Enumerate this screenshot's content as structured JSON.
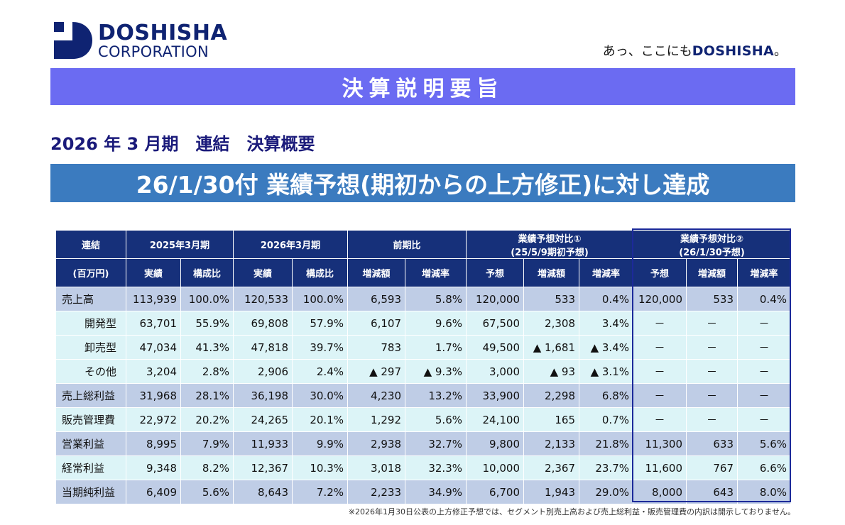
{
  "logo": {
    "line1": "DOSHISHA",
    "line2": "CORPORATION"
  },
  "slogan": {
    "prefix": "あっ、ここにも",
    "brand": "DOSHISHA",
    "suffix": "。"
  },
  "banner": "決算説明要旨",
  "subtitle": "2026 年 3 月期　連結　決算概要",
  "headline": "26/1/30付 業績予想(期初からの上方修正)に対し達成",
  "table": {
    "header1": [
      "連結",
      "2025年3月期",
      "2026年3月期",
      "前期比",
      "業績予想対比①\n(25/5/9期初予想)",
      "業績予想対比②\n(26/1/30予想)"
    ],
    "header1_lines": {
      "g4a": "業績予想対比①",
      "g4b": "(25/5/9期初予想)",
      "g5a": "業績予想対比②",
      "g5b": "(26/1/30予想)"
    },
    "header2": [
      "(百万円)",
      "実績",
      "構成比",
      "実績",
      "構成比",
      "増減額",
      "増減率",
      "予想",
      "増減額",
      "増減率",
      "予想",
      "増減額",
      "増減率"
    ],
    "rows": [
      {
        "label": "売上高",
        "values": [
          "113,939",
          "100.0%",
          "120,533",
          "100.0%",
          "6,593",
          "5.8%",
          "120,000",
          "533",
          "0.4%",
          "120,000",
          "533",
          "0.4%"
        ]
      },
      {
        "label": "開発型",
        "values": [
          "63,701",
          "55.9%",
          "69,808",
          "57.9%",
          "6,107",
          "9.6%",
          "67,500",
          "2,308",
          "3.4%",
          "－",
          "－",
          "－"
        ]
      },
      {
        "label": "卸売型",
        "values": [
          "47,034",
          "41.3%",
          "47,818",
          "39.7%",
          "783",
          "1.7%",
          "49,500",
          "▲ 1,681",
          "▲ 3.4%",
          "－",
          "－",
          "－"
        ]
      },
      {
        "label": "その他",
        "values": [
          "3,204",
          "2.8%",
          "2,906",
          "2.4%",
          "▲ 297",
          "▲ 9.3%",
          "3,000",
          "▲ 93",
          "▲ 3.1%",
          "－",
          "－",
          "－"
        ]
      },
      {
        "label": "売上総利益",
        "values": [
          "31,968",
          "28.1%",
          "36,198",
          "30.0%",
          "4,230",
          "13.2%",
          "33,900",
          "2,298",
          "6.8%",
          "－",
          "－",
          "－"
        ]
      },
      {
        "label": "販売管理費",
        "values": [
          "22,972",
          "20.2%",
          "24,265",
          "20.1%",
          "1,292",
          "5.6%",
          "24,100",
          "165",
          "0.7%",
          "－",
          "－",
          "－"
        ]
      },
      {
        "label": "営業利益",
        "values": [
          "8,995",
          "7.9%",
          "11,933",
          "9.9%",
          "2,938",
          "32.7%",
          "9,800",
          "2,133",
          "21.8%",
          "11,300",
          "633",
          "5.6%"
        ]
      },
      {
        "label": "経常利益",
        "values": [
          "9,348",
          "8.2%",
          "12,367",
          "10.3%",
          "3,018",
          "32.3%",
          "10,000",
          "2,367",
          "23.7%",
          "11,600",
          "767",
          "6.6%"
        ]
      },
      {
        "label": "当期純利益",
        "values": [
          "6,409",
          "5.6%",
          "8,643",
          "7.2%",
          "2,233",
          "34.9%",
          "6,700",
          "1,943",
          "29.0%",
          "8,000",
          "643",
          "8.0%"
        ]
      }
    ]
  },
  "note": "※2026年1月30日公表の上方修正予想では、セグメント別売上高および売上総利益・販売管理費の内訳は開示しておりません。",
  "colors": {
    "brand": "#0f2372",
    "banner": "#6b6bf2",
    "headline": "#3b7bbf",
    "table_header": "#16307a",
    "row_a": "#bfcde6",
    "row_b": "#dcf4f7"
  }
}
